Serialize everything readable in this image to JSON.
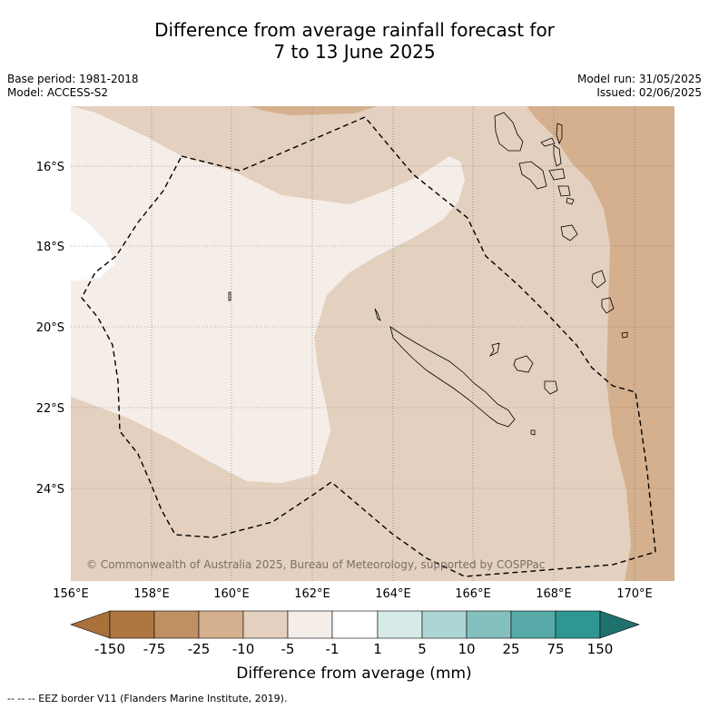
{
  "title": {
    "line1": "Difference from average rainfall forecast for",
    "line2": "7 to 13 June 2025"
  },
  "meta": {
    "base_period": "Base period: 1981-2018",
    "model": "Model: ACCESS-S2",
    "model_run": "Model run: 31/05/2025",
    "issued": "Issued: 02/06/2025"
  },
  "map": {
    "lat_labels": [
      "16°S",
      "18°S",
      "20°S",
      "22°S",
      "24°S"
    ],
    "lon_labels": [
      "156°E",
      "158°E",
      "160°E",
      "162°E",
      "164°E",
      "166°E",
      "168°E",
      "170°E"
    ],
    "copyright": "© Commonwealth of Australia 2025, Bureau of Meteorology, supported by COSPPac",
    "colors": {
      "band_neg1_neg5": "#f5eee8",
      "band_neg5_neg10": "#e4d0be",
      "band_neg10_neg25": "#d4b08e",
      "band_neg1_1": "#ffffff"
    }
  },
  "colorbar": {
    "tick_labels": [
      "-150",
      "-75",
      "-25",
      "-10",
      "-5",
      "-1",
      "1",
      "5",
      "10",
      "25",
      "75",
      "150"
    ],
    "colors": [
      "#a8713a",
      "#ae7641",
      "#c09063",
      "#d4b08e",
      "#e4d0be",
      "#f5eee8",
      "#ffffff",
      "#d6eae8",
      "#add5d4",
      "#83c0bd",
      "#57aaa8",
      "#2f9793",
      "#20706d"
    ],
    "label": "Difference from average (mm)"
  },
  "footnote": "--  --  -- EEZ border V11 (Flanders Marine Institute, 2019)."
}
